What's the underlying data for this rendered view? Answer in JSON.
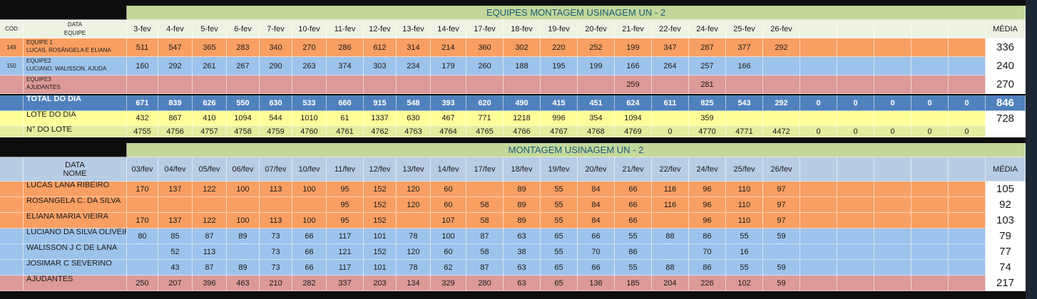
{
  "top": {
    "title": "EQUIPES MONTAGEM USINAGEM UN - 2",
    "header": {
      "cod": "CÓD",
      "label": [
        "DATA",
        "EQUIPE"
      ],
      "dates": [
        "3-fev",
        "4-fev",
        "5-fev",
        "6-fev",
        "7-fev",
        "10-fev",
        "11-fev",
        "12-fev",
        "13-fev",
        "14-fev",
        "17-fev",
        "18-fev",
        "19-fev",
        "20-fev",
        "21-fev",
        "22-fev",
        "24-fev",
        "25-fev",
        "26-fev"
      ],
      "media": "MÉDIA"
    },
    "rows": [
      {
        "cod": 149,
        "label": [
          "EQUIPE 1",
          "LUCAS, ROSÂNGELA E ELIANA"
        ],
        "color": "#fa9f62",
        "cells": [
          511,
          547,
          365,
          283,
          340,
          270,
          286,
          612,
          314,
          214,
          360,
          302,
          220,
          252,
          199,
          347,
          287,
          377,
          292
        ],
        "media": 336
      },
      {
        "cod": 150,
        "label": [
          "EQUIPE2",
          "LUCIANO, WALISSON, AJUDA"
        ],
        "color": "#9cc3ec",
        "cells": [
          160,
          292,
          261,
          267,
          290,
          263,
          374,
          303,
          234,
          179,
          260,
          188,
          195,
          199,
          166,
          264,
          257,
          166
        ],
        "media": 240
      },
      {
        "label": [
          "EQUIPE3",
          "AJUDANTES"
        ],
        "color": "#dc9a98",
        "cells": [
          null,
          null,
          null,
          null,
          null,
          null,
          null,
          null,
          null,
          null,
          null,
          null,
          null,
          null,
          259,
          null,
          281
        ],
        "media": 270
      },
      {
        "label": [
          "TOTAL DO DIA"
        ],
        "color": "#4f81bd",
        "cells": [
          671,
          839,
          626,
          550,
          630,
          533,
          660,
          915,
          548,
          393,
          620,
          490,
          415,
          451,
          624,
          611,
          825,
          543,
          292,
          0,
          0,
          0,
          0,
          0
        ],
        "media": 846
      },
      {
        "label": [
          "LOTE DO DIA"
        ],
        "color": "#ffff99",
        "cells": [
          432,
          867,
          410,
          1094,
          544,
          1010,
          61,
          1337,
          630,
          467,
          771,
          1218,
          996,
          354,
          1094,
          null,
          359
        ],
        "media": 728
      },
      {
        "label": [
          "N° DO LOTE"
        ],
        "color": "#e4ec9e",
        "cells": [
          4755,
          4756,
          4757,
          4758,
          4759,
          4760,
          4761,
          4762,
          4763,
          4764,
          4765,
          4766,
          4767,
          4768,
          4769,
          0,
          4770,
          4771,
          4472,
          0,
          0,
          0,
          0,
          0
        ]
      }
    ]
  },
  "bottom": {
    "title": "MONTAGEM USINAGEM UN - 2",
    "header": {
      "label": [
        "DATA",
        "NOME"
      ],
      "dates": [
        "03/fev",
        "04/fev",
        "05/fev",
        "06/fev",
        "07/fev",
        "10/fev",
        "11/fev",
        "12/fev",
        "13/fev",
        "14/fev",
        "17/fev",
        "18/fev",
        "19/fev",
        "20/fev",
        "21/fev",
        "22/fev",
        "24/fev",
        "25/fev",
        "26/fev"
      ],
      "media": "MÉDIA"
    },
    "rows": [
      {
        "label": [
          "LUCAS LANA RIBEIRO"
        ],
        "color": "#fa9f62",
        "cells": [
          170,
          137,
          122,
          100,
          113,
          100,
          95,
          152,
          120,
          60,
          null,
          89,
          55,
          84,
          66,
          116,
          96,
          110,
          97
        ],
        "media": 105
      },
      {
        "label": [
          "ROSÂNGELA C. DA SILVA"
        ],
        "color": "#fa9f62",
        "cells": [
          null,
          null,
          null,
          null,
          null,
          null,
          95,
          152,
          120,
          60,
          58,
          89,
          55,
          84,
          66,
          116,
          96,
          110,
          97
        ],
        "media": 92
      },
      {
        "label": [
          "ELIANA MARIA VIEIRA"
        ],
        "color": "#fa9f62",
        "cells": [
          170,
          137,
          122,
          100,
          113,
          100,
          95,
          152,
          null,
          107,
          58,
          89,
          55,
          84,
          66,
          null,
          96,
          110,
          97
        ],
        "media": 103
      },
      {
        "label": [
          "LUCIANO DA SILVA OLIVEIR"
        ],
        "color": "#9cc3ec",
        "cells": [
          80,
          85,
          87,
          89,
          73,
          66,
          117,
          101,
          78,
          100,
          87,
          63,
          65,
          66,
          55,
          88,
          86,
          55,
          59
        ],
        "media": 79
      },
      {
        "label": [
          "WALISSON J C DE LANA"
        ],
        "color": "#9cc3ec",
        "cells": [
          null,
          52,
          113,
          null,
          73,
          66,
          121,
          152,
          120,
          60,
          58,
          38,
          55,
          70,
          86,
          null,
          70,
          16
        ],
        "media": 77
      },
      {
        "label": [
          "JOSIMAR C SEVERINO"
        ],
        "color": "#9cc3ec",
        "cells": [
          null,
          43,
          87,
          89,
          73,
          66,
          117,
          101,
          78,
          62,
          87,
          63,
          65,
          66,
          55,
          88,
          86,
          55,
          59
        ],
        "media": 74
      },
      {
        "label": [
          "AJUDANTES"
        ],
        "color": "#dc9a98",
        "cells": [
          250,
          207,
          396,
          463,
          210,
          282,
          337,
          203,
          134,
          329,
          280,
          63,
          65,
          136,
          185,
          204,
          226,
          102,
          59
        ],
        "media": 217
      }
    ]
  }
}
